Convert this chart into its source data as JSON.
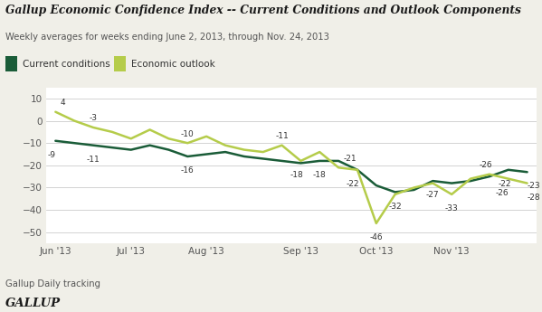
{
  "title": "Gallup Economic Confidence Index -- Current Conditions and Outlook Components",
  "subtitle": "Weekly averages for weeks ending June 2, 2013, through Nov. 24, 2013",
  "footer": "Gallup Daily tracking",
  "brand": "GALLUP",
  "current_conditions": {
    "label": "Current conditions",
    "color": "#1a5c38",
    "x": [
      0,
      1,
      2,
      3,
      4,
      5,
      6,
      7,
      8,
      9,
      10,
      11,
      12,
      13,
      14,
      15,
      16,
      17,
      18,
      19,
      20,
      21,
      22,
      23,
      24,
      25
    ],
    "y": [
      -9,
      -10,
      -11,
      -12,
      -13,
      -11,
      -13,
      -16,
      -15,
      -14,
      -16,
      -17,
      -18,
      -19,
      -18,
      -18,
      -22,
      -29,
      -32,
      -31,
      -27,
      -28,
      -27,
      -25,
      -22,
      -23
    ]
  },
  "economic_outlook": {
    "label": "Economic outlook",
    "color": "#b5cc4a",
    "x": [
      0,
      1,
      2,
      3,
      4,
      5,
      6,
      7,
      8,
      9,
      10,
      11,
      12,
      13,
      14,
      15,
      16,
      17,
      18,
      19,
      20,
      21,
      22,
      23,
      24,
      25
    ],
    "y": [
      4,
      0,
      -3,
      -5,
      -8,
      -4,
      -8,
      -10,
      -7,
      -11,
      -13,
      -14,
      -11,
      -18,
      -14,
      -21,
      -22,
      -46,
      -33,
      -30,
      -28,
      -33,
      -26,
      -24,
      -26,
      -28
    ]
  },
  "xtick_positions": [
    0,
    4,
    8,
    13,
    17,
    21
  ],
  "xtick_labels": [
    "Jun '13",
    "Jul '13",
    "Aug '13",
    "Sep '13",
    "Oct '13",
    "Nov '13"
  ],
  "ylim": [
    -55,
    15
  ],
  "yticks": [
    10,
    0,
    -10,
    -20,
    -30,
    -40,
    -50
  ],
  "background_color": "#f0efe8",
  "plot_bg_color": "#ffffff"
}
